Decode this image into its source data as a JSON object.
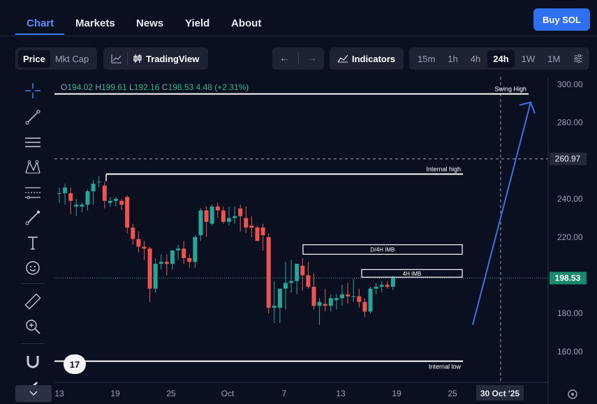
{
  "nav": {
    "tabs": [
      {
        "label": "Chart",
        "active": true
      },
      {
        "label": "Markets",
        "active": false
      },
      {
        "label": "News",
        "active": false
      },
      {
        "label": "Yield",
        "active": false
      },
      {
        "label": "About",
        "active": false
      }
    ],
    "buy_label": "Buy SOL"
  },
  "toolbar": {
    "price_label": "Price",
    "mktcap_label": "Mkt Cap",
    "tradingview_label": "TradingView",
    "indicators_label": "Indicators",
    "intervals": [
      "15m",
      "1h",
      "4h",
      "24h",
      "1W",
      "1M"
    ],
    "active_interval": "24h"
  },
  "ohlc": {
    "o_label": "O",
    "o": "194.02",
    "h_label": "H",
    "h": "199.61",
    "l_label": "L",
    "l": "192.16",
    "c_label": "C",
    "c": "198.53",
    "change": "4.48 (+2.31%)"
  },
  "chart_data": {
    "type": "candlestick",
    "y_ticks": [
      "300.00",
      "280.00",
      "260.00",
      "240.00",
      "220.00",
      "200.00",
      "180.00",
      "160.00"
    ],
    "ylim": [
      145,
      304
    ],
    "x_ticks": [
      "13",
      "19",
      "25",
      "Oct",
      "7",
      "13",
      "19",
      "25"
    ],
    "crosshair_price": "260.97",
    "current_price": "198.53",
    "crosshair_date": "30 Oct '25",
    "colors": {
      "up": "#26a69a",
      "down": "#ef5350",
      "arrow": "#3f6fe0"
    },
    "candles": [
      [
        243,
        246,
        238,
        243
      ],
      [
        243,
        248,
        237,
        246
      ],
      [
        243,
        246,
        232,
        239
      ],
      [
        236,
        240,
        231,
        237
      ],
      [
        236,
        238,
        233,
        237
      ],
      [
        237,
        245,
        234,
        244
      ],
      [
        244,
        250,
        237,
        248
      ],
      [
        249,
        252,
        246,
        249
      ],
      [
        247,
        249,
        235,
        239
      ],
      [
        238,
        241,
        236,
        239
      ],
      [
        239,
        241,
        236,
        240
      ],
      [
        239,
        240,
        234,
        237
      ],
      [
        241,
        242,
        222,
        225
      ],
      [
        225,
        227,
        216,
        219
      ],
      [
        219,
        223,
        212,
        215
      ],
      [
        215,
        218,
        208,
        214
      ],
      [
        214,
        215,
        186,
        193
      ],
      [
        193,
        209,
        191,
        206
      ],
      [
        206,
        211,
        203,
        207
      ],
      [
        207,
        211,
        200,
        206
      ],
      [
        206,
        213,
        203,
        213
      ],
      [
        213,
        216,
        208,
        214
      ],
      [
        214,
        218,
        206,
        209
      ],
      [
        209,
        211,
        204,
        207
      ],
      [
        207,
        221,
        204,
        220
      ],
      [
        221,
        235,
        218,
        234
      ],
      [
        234,
        236,
        220,
        228
      ],
      [
        227,
        237,
        226,
        236
      ],
      [
        236,
        238,
        230,
        234
      ],
      [
        234,
        236,
        227,
        228
      ],
      [
        228,
        236,
        226,
        230
      ],
      [
        230,
        236,
        227,
        231
      ],
      [
        235,
        237,
        223,
        231
      ],
      [
        230,
        236,
        222,
        225
      ],
      [
        226,
        231,
        220,
        225
      ],
      [
        225,
        226,
        218,
        218
      ],
      [
        225,
        227,
        213,
        221
      ],
      [
        220,
        222,
        180,
        183
      ],
      [
        183,
        197,
        175,
        184
      ],
      [
        183,
        193,
        175,
        193
      ],
      [
        193,
        207,
        182,
        196
      ],
      [
        196,
        208,
        191,
        197
      ],
      [
        197,
        205,
        190,
        206
      ],
      [
        205,
        209,
        192,
        200
      ],
      [
        200,
        207,
        193,
        194
      ],
      [
        194,
        201,
        182,
        184
      ],
      [
        184,
        188,
        174,
        186
      ],
      [
        185,
        193,
        181,
        184
      ],
      [
        184,
        190,
        181,
        188
      ],
      [
        187,
        190,
        182,
        188
      ],
      [
        188,
        195,
        184,
        190
      ],
      [
        190,
        196,
        185,
        189
      ],
      [
        189,
        198,
        186,
        189
      ],
      [
        189,
        193,
        183,
        186
      ],
      [
        186,
        188,
        178,
        181
      ],
      [
        181,
        194,
        180,
        193
      ],
      [
        193,
        196,
        190,
        194
      ],
      [
        194,
        197,
        191,
        195
      ],
      [
        195,
        197,
        193,
        194
      ],
      [
        194.02,
        199.61,
        192.16,
        198.53
      ]
    ],
    "levels": [
      {
        "label": "Swing High",
        "price": 295
      },
      {
        "label": "Internal high",
        "price": 253
      },
      {
        "label": "Internal low",
        "price": 155
      }
    ],
    "zones": [
      {
        "label": "D/4H IMB",
        "top": 216,
        "bottom": 211
      },
      {
        "label": "4H IMB",
        "top": 203,
        "bottom": 199
      }
    ],
    "projection": {
      "from_price": 174,
      "to_price": 295
    }
  }
}
